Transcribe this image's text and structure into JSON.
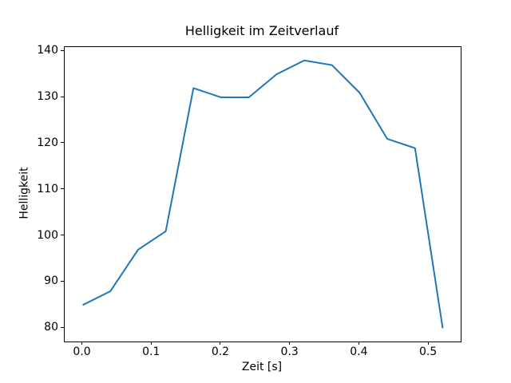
{
  "figure": {
    "background_color": "#ffffff",
    "spine_color": "#000000",
    "text_color": "#000000"
  },
  "chart_data": {
    "type": "line",
    "title": "Helligkeit im Zeitverlauf",
    "xlabel": "Zeit [s]",
    "ylabel": "Helligkeit",
    "x": [
      0.0,
      0.04,
      0.08,
      0.12,
      0.16,
      0.2,
      0.24,
      0.28,
      0.32,
      0.36,
      0.4,
      0.44,
      0.48,
      0.52
    ],
    "y": [
      85,
      88,
      97,
      101,
      132,
      130,
      130,
      135,
      138,
      137,
      131,
      121,
      119,
      80
    ],
    "line_color": "#1f77b4",
    "xlim": [
      -0.026,
      0.546
    ],
    "ylim": [
      77.1,
      140.9
    ],
    "x_ticks": [
      0.0,
      0.1,
      0.2,
      0.3,
      0.4,
      0.5
    ],
    "x_tick_labels": [
      "0.0",
      "0.1",
      "0.2",
      "0.3",
      "0.4",
      "0.5"
    ],
    "y_ticks": [
      80,
      90,
      100,
      110,
      120,
      130,
      140
    ],
    "y_tick_labels": [
      "80",
      "90",
      "100",
      "110",
      "120",
      "130",
      "140"
    ],
    "grid": false,
    "legend_position": "none"
  }
}
